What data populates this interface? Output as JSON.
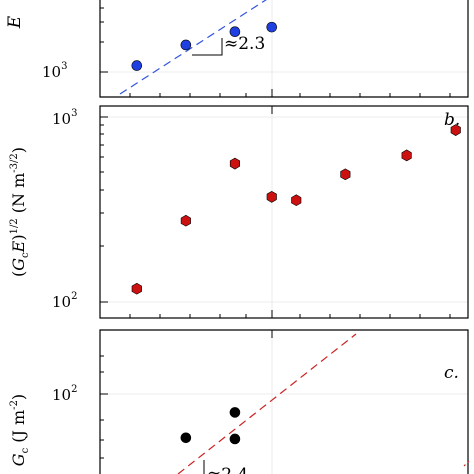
{
  "chart_data": [
    {
      "type": "scatter",
      "panel": "a",
      "ylabel": "E",
      "yscale": "log",
      "ytick_labels": [
        {
          "base": "10",
          "exp": "3"
        }
      ],
      "series": [
        {
          "color": "#1f3fe0",
          "marker": "circle",
          "x": [
            0.28,
            0.32,
            0.36,
            0.39
          ],
          "y": [
            1150,
            1800,
            2400,
            2650
          ]
        }
      ],
      "fit_line": {
        "color": "#3355dd",
        "style": "dashed"
      },
      "annotation": "≈2.3"
    },
    {
      "type": "scatter",
      "panel": "b",
      "panel_label": "b.",
      "ylabel": {
        "parts": [
          "(",
          "G",
          "c",
          "E",
          ")",
          "1/2",
          " (N m",
          "-3/2",
          ")"
        ]
      },
      "yscale": "log",
      "ytick_labels": [
        {
          "base": "10",
          "exp": "3"
        },
        {
          "base": "10",
          "exp": "2"
        }
      ],
      "series": [
        {
          "color": "#cc1111",
          "marker": "hexagon",
          "x": [
            0.28,
            0.32,
            0.36,
            0.39,
            0.41,
            0.45,
            0.5,
            0.54
          ],
          "y": [
            118,
            275,
            560,
            370,
            355,
            490,
            620,
            850
          ]
        }
      ]
    },
    {
      "type": "scatter",
      "panel": "c",
      "panel_label": "c.",
      "ylabel": {
        "parts": [
          "G",
          "c",
          " (J m",
          "-2",
          ")"
        ]
      },
      "yscale": "log",
      "ytick_labels": [
        {
          "base": "10",
          "exp": "2"
        }
      ],
      "series": [
        {
          "color": "#000000",
          "marker": "circle",
          "x": [
            0.32,
            0.36,
            0.36
          ],
          "y": [
            40,
            68,
            39
          ]
        }
      ],
      "fit_line": {
        "color": "#cc2222",
        "style": "dashed"
      },
      "annotation": "≈2.4"
    }
  ]
}
